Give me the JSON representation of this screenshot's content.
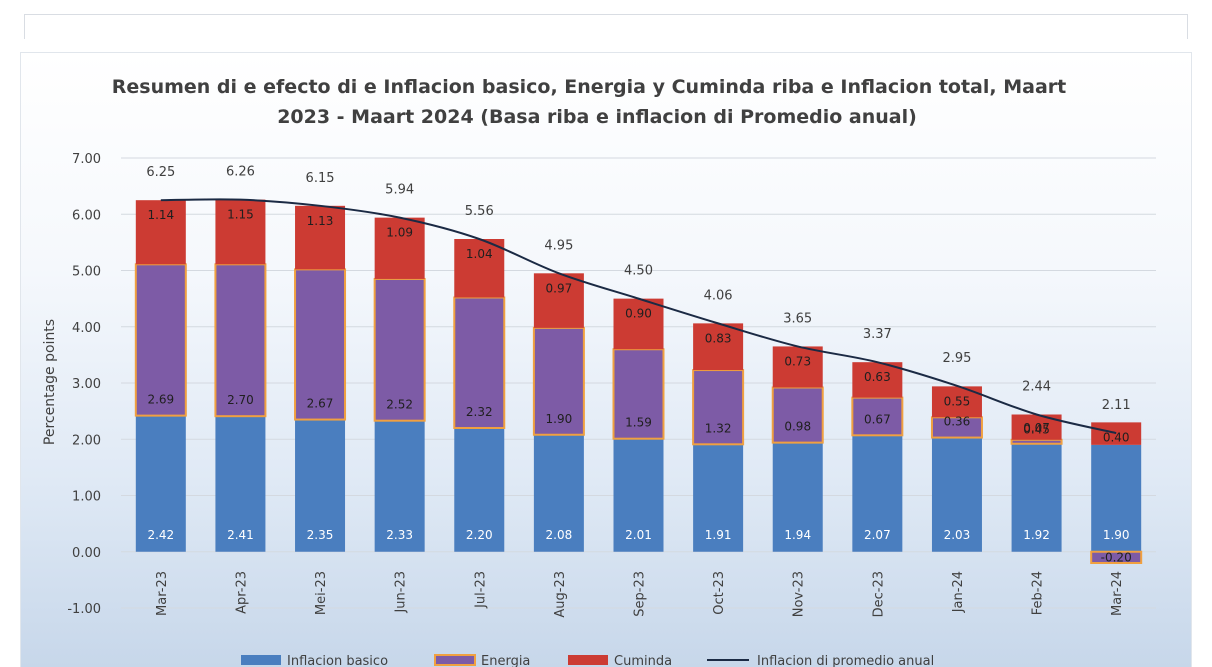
{
  "chart_data": {
    "type": "bar",
    "stacked": true,
    "title_lines": [
      "Resumen di e efecto di e Inflacion basico, Energia y Cuminda riba e Inflacion total, Maart",
      "2023 - Maart 2024 (Basa riba e inflacion di Promedio anual)"
    ],
    "ylabel": "Percentage points",
    "xlabel": "",
    "ylim": [
      -1.0,
      7.0
    ],
    "yticks": [
      -1.0,
      0.0,
      1.0,
      2.0,
      3.0,
      4.0,
      5.0,
      6.0,
      7.0
    ],
    "ytick_labels": [
      "-1.00",
      "0.00",
      "1.00",
      "2.00",
      "3.00",
      "4.00",
      "5.00",
      "6.00",
      "7.00"
    ],
    "grid": true,
    "legend_position": "bottom",
    "categories": [
      "Mar-23",
      "Apr-23",
      "Mei-23",
      "Jun-23",
      "Jul-23",
      "Aug-23",
      "Sep-23",
      "Oct-23",
      "Nov-23",
      "Dec-23",
      "Jan-24",
      "Feb-24",
      "Mar-24"
    ],
    "series": [
      {
        "name": "Inflacion basico",
        "kind": "bar",
        "color": "#4a7ebf",
        "values": [
          2.42,
          2.41,
          2.35,
          2.33,
          2.2,
          2.08,
          2.01,
          1.91,
          1.94,
          2.07,
          2.03,
          1.92,
          1.9
        ],
        "labels": [
          "2.42",
          "2.41",
          "2.35",
          "2.33",
          "2.20",
          "2.08",
          "2.01",
          "1.91",
          "1.94",
          "2.07",
          "2.03",
          "1.92",
          "1.90"
        ]
      },
      {
        "name": "Energia",
        "kind": "bar",
        "color": "#7d5ba6",
        "border_color": "#f0a040",
        "values": [
          2.69,
          2.7,
          2.67,
          2.52,
          2.32,
          1.9,
          1.59,
          1.32,
          0.98,
          0.67,
          0.36,
          0.07,
          -0.2
        ],
        "labels": [
          "2.69",
          "2.70",
          "2.67",
          "2.52",
          "2.32",
          "1.90",
          "1.59",
          "1.32",
          "0.98",
          "0.67",
          "0.36",
          "0.07",
          "-0.20"
        ]
      },
      {
        "name": "Cuminda",
        "kind": "bar",
        "color": "#cc3b33",
        "values": [
          1.14,
          1.15,
          1.13,
          1.09,
          1.04,
          0.97,
          0.9,
          0.83,
          0.73,
          0.63,
          0.55,
          0.45,
          0.4
        ],
        "labels": [
          "1.14",
          "1.15",
          "1.13",
          "1.09",
          "1.04",
          "0.97",
          "0.90",
          "0.83",
          "0.73",
          "0.63",
          "0.55",
          "0.45",
          "0.40"
        ]
      },
      {
        "name": "Inflacion di promedio anual",
        "kind": "line",
        "color": "#1b2a44",
        "values": [
          6.25,
          6.26,
          6.15,
          5.94,
          5.56,
          4.95,
          4.5,
          4.06,
          3.65,
          3.37,
          2.95,
          2.44,
          2.11
        ],
        "labels": [
          "6.25",
          "6.26",
          "6.15",
          "5.94",
          "5.56",
          "4.95",
          "4.50",
          "4.06",
          "3.65",
          "3.37",
          "2.95",
          "2.44",
          "2.11"
        ]
      }
    ]
  }
}
